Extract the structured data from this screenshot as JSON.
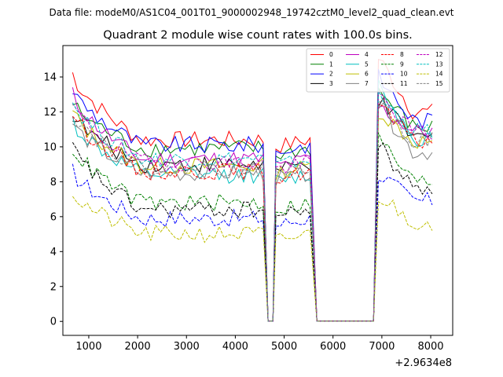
{
  "header": {
    "data_file": "Data file: modeM0/AS1C04_001T01_9000002948_19742cztM0_level2_quad_clean.evt"
  },
  "chart_data": {
    "type": "line",
    "title": "Quadrant 2 module wise count rates with 100.0s bins.",
    "xlabel": "",
    "ylabel": "",
    "x_offset_label": "+2.9634e8",
    "xlim": [
      470,
      8450
    ],
    "ylim": [
      -0.8,
      15.8
    ],
    "x_ticks": [
      1000,
      2000,
      3000,
      4000,
      5000,
      6000,
      7000,
      8000
    ],
    "x_tick_labels": [
      "1000",
      "2000",
      "3000",
      "4000",
      "5000",
      "6000",
      "7000",
      "8000"
    ],
    "y_ticks": [
      0,
      2,
      4,
      6,
      8,
      10,
      12,
      14
    ],
    "y_tick_labels": [
      "0",
      "2",
      "4",
      "6",
      "8",
      "10",
      "12",
      "14"
    ],
    "legend_location": "upper right",
    "legend_columns": 4,
    "segments": [
      [
        670,
        4570
      ],
      [
        4830,
        5570
      ],
      [
        6930,
        8070
      ]
    ],
    "gap_points": [
      4670,
      4770,
      5670,
      6830
    ],
    "series": [
      {
        "name": "0",
        "color": "#ff0000",
        "style": "solid",
        "start": 14.2,
        "level": 10.4,
        "peak": 15.1,
        "level2": 12.0
      },
      {
        "name": "1",
        "color": "#008000",
        "style": "solid",
        "start": 12.5,
        "level": 9.9,
        "peak": 13.2,
        "level2": 11.1
      },
      {
        "name": "2",
        "color": "#0000ff",
        "style": "solid",
        "start": 13.3,
        "level": 10.1,
        "peak": 14.0,
        "level2": 11.5
      },
      {
        "name": "3",
        "color": "#000000",
        "style": "solid",
        "start": 11.9,
        "level": 9.0,
        "peak": 12.6,
        "level2": 10.5
      },
      {
        "name": "4",
        "color": "#bf00bf",
        "style": "solid",
        "start": 13.0,
        "level": 9.3,
        "peak": 12.3,
        "level2": 10.9
      },
      {
        "name": "5",
        "color": "#00bfbf",
        "style": "solid",
        "start": 11.5,
        "level": 8.4,
        "peak": 13.6,
        "level2": 10.5
      },
      {
        "name": "6",
        "color": "#bfbf00",
        "style": "solid",
        "start": 12.0,
        "level": 8.9,
        "peak": 12.1,
        "level2": 10.3
      },
      {
        "name": "7",
        "color": "#808080",
        "style": "solid",
        "start": 11.4,
        "level": 8.5,
        "peak": 12.4,
        "level2": 9.7
      },
      {
        "name": "8",
        "color": "#ff0000",
        "style": "dashed",
        "start": 12.0,
        "level": 8.6,
        "peak": 12.4,
        "level2": 10.3
      },
      {
        "name": "9",
        "color": "#008000",
        "style": "dashed",
        "start": 10.0,
        "level": 6.8,
        "peak": 10.5,
        "level2": 8.0
      },
      {
        "name": "10",
        "color": "#0000ff",
        "style": "dashed",
        "start": 8.6,
        "level": 5.9,
        "peak": 8.5,
        "level2": 6.9
      },
      {
        "name": "11",
        "color": "#000000",
        "style": "dashed",
        "start": 10.0,
        "level": 6.4,
        "peak": 10.1,
        "level2": 7.6
      },
      {
        "name": "12",
        "color": "#bf00bf",
        "style": "dashed",
        "start": 12.4,
        "level": 9.1,
        "peak": 13.0,
        "level2": 10.8
      },
      {
        "name": "13",
        "color": "#00bfbf",
        "style": "dashed",
        "start": 12.6,
        "level": 9.3,
        "peak": 12.9,
        "level2": 10.9
      },
      {
        "name": "14",
        "color": "#bfbf00",
        "style": "dashed",
        "start": 7.4,
        "level": 5.0,
        "peak": 7.2,
        "level2": 5.7
      },
      {
        "name": "15",
        "color": "#808080",
        "style": "dashed",
        "start": 12.1,
        "level": 8.8,
        "peak": 12.6,
        "level2": 10.4
      }
    ]
  }
}
